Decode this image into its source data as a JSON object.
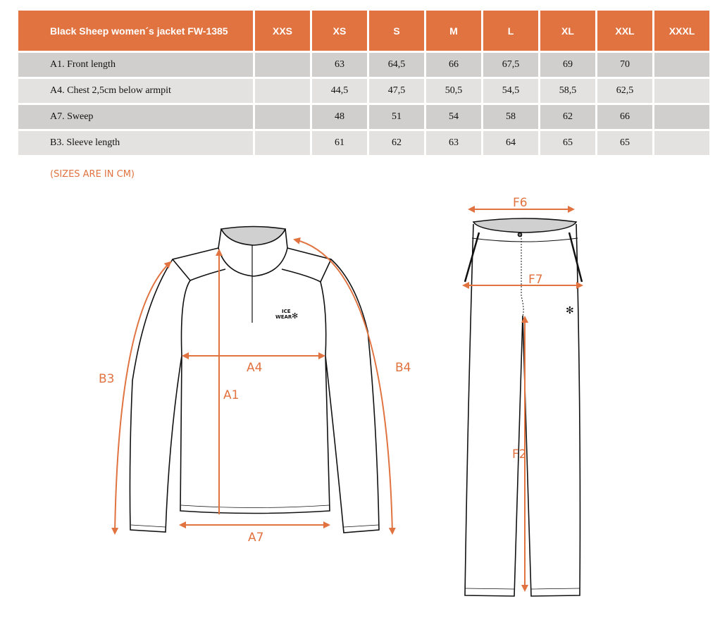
{
  "table": {
    "title": "Black Sheep women´s jacket FW-1385",
    "sizes": [
      "XXS",
      "XS",
      "S",
      "M",
      "L",
      "XL",
      "XXL",
      "XXXL"
    ],
    "rows": [
      {
        "label": "A1. Front length",
        "values": [
          "",
          "63",
          "64,5",
          "66",
          "67,5",
          "69",
          "70",
          ""
        ]
      },
      {
        "label": "A4. Chest 2,5cm below armpit",
        "values": [
          "",
          "44,5",
          "47,5",
          "50,5",
          "54,5",
          "58,5",
          "62,5",
          ""
        ]
      },
      {
        "label": "A7. Sweep",
        "values": [
          "",
          "48",
          "51",
          "54",
          "58",
          "62",
          "66",
          ""
        ]
      },
      {
        "label": "B3. Sleeve length",
        "values": [
          "",
          "61",
          "62",
          "63",
          "64",
          "65",
          "65",
          ""
        ]
      }
    ]
  },
  "note": "(SIZES ARE IN CM)",
  "diagram": {
    "jacket_labels": {
      "a4": "A4",
      "a1": "A1",
      "a7": "A7",
      "b3": "B3",
      "b4": "B4"
    },
    "pants_labels": {
      "f6": "F6",
      "f7": "F7",
      "f2": "F2"
    },
    "logo": [
      "ICE",
      "WEAR"
    ]
  },
  "colors": {
    "accent": "#e07340",
    "row_dark": "#d0cfcd",
    "row_light": "#e3e2e0"
  }
}
